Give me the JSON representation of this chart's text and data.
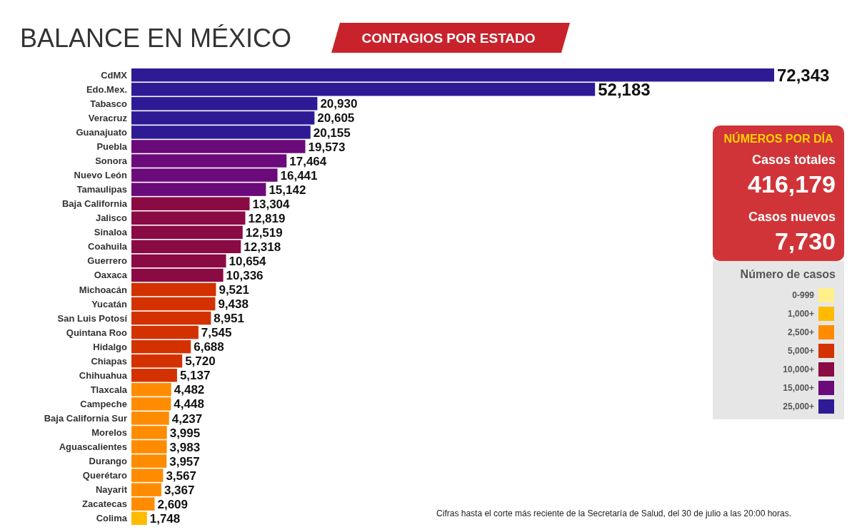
{
  "chart_data": {
    "type": "bar",
    "orientation": "horizontal",
    "legend": "right",
    "legend_title": "Número de casos",
    "title": "BALANCE EN MÉXICO",
    "subtitle": "CONTAGIOS POR ESTADO",
    "categories": [
      "CdMX",
      "Edo.Mex.",
      "Tabasco",
      "Veracruz",
      "Guanajuato",
      "Puebla",
      "Sonora",
      "Nuevo León",
      "Tamaulipas",
      "Baja California",
      "Jalisco",
      "Sinaloa",
      "Coahuila",
      "Guerrero",
      "Oaxaca",
      "Michoacán",
      "Yucatán",
      "San Luis Potosí",
      "Quintana Roo",
      "Hidalgo",
      "Chiapas",
      "Chihuahua",
      "Tlaxcala",
      "Campeche",
      "Baja California Sur",
      "Morelos",
      "Aguascalientes",
      "Durango",
      "Querétaro",
      "Nayarit",
      "Zacatecas",
      "Colima"
    ],
    "series": [
      {
        "name": "0-999",
        "color": "#fff08a",
        "values": [
          null,
          null,
          null,
          null,
          null,
          null,
          null,
          null,
          null,
          null,
          null,
          null,
          null,
          null,
          null,
          null,
          null,
          null,
          null,
          null,
          null,
          null,
          null,
          null,
          null,
          null,
          null,
          null,
          null,
          null,
          null,
          null
        ],
        "value_labels": [
          null,
          null,
          null,
          null,
          null,
          null,
          null,
          null,
          null,
          null,
          null,
          null,
          null,
          null,
          null,
          null,
          null,
          null,
          null,
          null,
          null,
          null,
          null,
          null,
          null,
          null,
          null,
          null,
          null,
          null,
          null,
          null
        ]
      },
      {
        "name": "1,000+",
        "color": "#ffbb00",
        "values": [
          null,
          null,
          null,
          null,
          null,
          null,
          null,
          null,
          null,
          null,
          null,
          null,
          null,
          null,
          null,
          null,
          null,
          null,
          null,
          null,
          null,
          null,
          null,
          null,
          null,
          null,
          null,
          null,
          null,
          null,
          null,
          1748
        ],
        "value_labels": [
          null,
          null,
          null,
          null,
          null,
          null,
          null,
          null,
          null,
          null,
          null,
          null,
          null,
          null,
          null,
          null,
          null,
          null,
          null,
          null,
          null,
          null,
          null,
          null,
          null,
          null,
          null,
          null,
          null,
          null,
          null,
          "1,748"
        ]
      },
      {
        "name": "2,500+",
        "color": "#ff8c00",
        "values": [
          null,
          null,
          null,
          null,
          null,
          null,
          null,
          null,
          null,
          null,
          null,
          null,
          null,
          null,
          null,
          null,
          null,
          null,
          null,
          null,
          null,
          null,
          4482,
          4448,
          4237,
          3995,
          3983,
          3957,
          3567,
          3367,
          2609,
          null
        ],
        "value_labels": [
          null,
          null,
          null,
          null,
          null,
          null,
          null,
          null,
          null,
          null,
          null,
          null,
          null,
          null,
          null,
          null,
          null,
          null,
          null,
          null,
          null,
          null,
          "4,482",
          "4,448",
          "4,237",
          "3,995",
          "3,983",
          "3,957",
          "3,567",
          "3,367",
          "2,609",
          null
        ]
      },
      {
        "name": "5,000+",
        "color": "#d33200",
        "values": [
          null,
          null,
          null,
          null,
          null,
          null,
          null,
          null,
          null,
          null,
          null,
          null,
          null,
          null,
          null,
          9521,
          9438,
          8951,
          7545,
          6688,
          5720,
          5137,
          null,
          null,
          null,
          null,
          null,
          null,
          null,
          null,
          null,
          null
        ],
        "value_labels": [
          null,
          null,
          null,
          null,
          null,
          null,
          null,
          null,
          null,
          null,
          null,
          null,
          null,
          null,
          null,
          "9,521",
          "9,438",
          "8,951",
          "7,545",
          "6,688",
          "5,720",
          "5,137",
          null,
          null,
          null,
          null,
          null,
          null,
          null,
          null,
          null,
          null
        ]
      },
      {
        "name": "10,000+",
        "color": "#8a0a44",
        "values": [
          null,
          null,
          null,
          null,
          null,
          null,
          null,
          null,
          null,
          13304,
          12819,
          12519,
          12318,
          10654,
          10336,
          null,
          null,
          null,
          null,
          null,
          null,
          null,
          null,
          null,
          null,
          null,
          null,
          null,
          null,
          null,
          null,
          null
        ],
        "value_labels": [
          null,
          null,
          null,
          null,
          null,
          null,
          null,
          null,
          null,
          "13,304",
          "12,819",
          "12,519",
          "12,318",
          "10,654",
          "10,336",
          null,
          null,
          null,
          null,
          null,
          null,
          null,
          null,
          null,
          null,
          null,
          null,
          null,
          null,
          null,
          null,
          null
        ]
      },
      {
        "name": "15,000+",
        "color": "#6b0a7a",
        "values": [
          null,
          null,
          null,
          null,
          null,
          19573,
          17464,
          16441,
          15142,
          null,
          null,
          null,
          null,
          null,
          null,
          null,
          null,
          null,
          null,
          null,
          null,
          null,
          null,
          null,
          null,
          null,
          null,
          null,
          null,
          null,
          null,
          null
        ],
        "value_labels": [
          null,
          null,
          null,
          null,
          null,
          "19,573",
          "17,464",
          "16,441",
          "15,142",
          null,
          null,
          null,
          null,
          null,
          null,
          null,
          null,
          null,
          null,
          null,
          null,
          null,
          null,
          null,
          null,
          null,
          null,
          null,
          null,
          null,
          null,
          null
        ]
      },
      {
        "name": "25,000+",
        "color": "#2f1a96",
        "values": [
          72343,
          52183,
          20930,
          20605,
          20155,
          null,
          null,
          null,
          null,
          null,
          null,
          null,
          null,
          null,
          null,
          null,
          null,
          null,
          null,
          null,
          null,
          null,
          null,
          null,
          null,
          null,
          null,
          null,
          null,
          null,
          null,
          null
        ],
        "value_labels": [
          "72,343",
          "52,183",
          "20,930",
          "20,605",
          "20,155",
          null,
          null,
          null,
          null,
          null,
          null,
          null,
          null,
          null,
          null,
          null,
          null,
          null,
          null,
          null,
          null,
          null,
          null,
          null,
          null,
          null,
          null,
          null,
          null,
          null,
          null,
          null
        ]
      }
    ],
    "annotations": [
      "NÚMEROS POR DÍA",
      "Casos totales",
      "416,179",
      "Casos nuevos",
      "7,730",
      "Cifras hasta el corte más reciente de la Secretaría de Salud, del 30 de julio a las 20:00 horas."
    ]
  }
}
